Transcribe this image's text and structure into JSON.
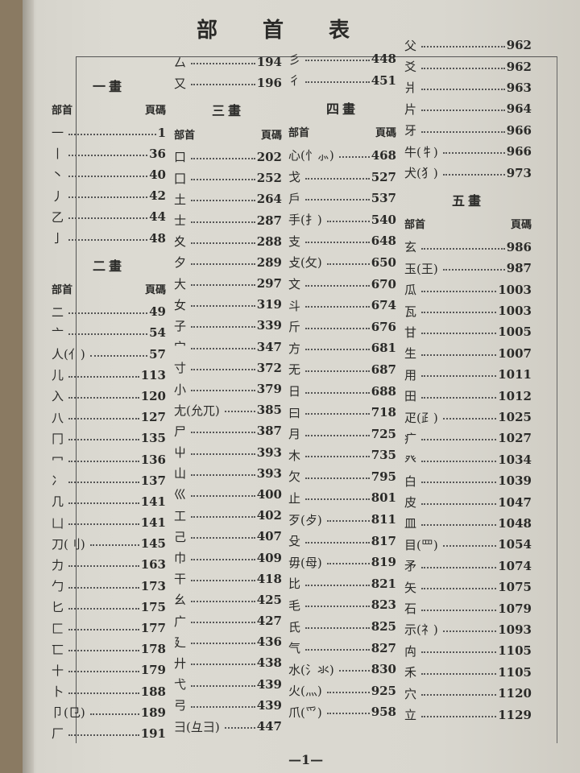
{
  "title": [
    "部",
    "首",
    "表"
  ],
  "header_labels": {
    "radical": "部首",
    "page": "頁碼"
  },
  "footer": "—1—",
  "columns": [
    {
      "items": [
        {
          "section": "一畫"
        },
        {
          "header": true
        },
        {
          "r": "一",
          "p": "1"
        },
        {
          "r": "丨",
          "p": "36"
        },
        {
          "r": "丶",
          "p": "40"
        },
        {
          "r": "丿",
          "p": "42"
        },
        {
          "r": "乙",
          "p": "44"
        },
        {
          "r": "亅",
          "p": "48"
        },
        {
          "section": "二畫"
        },
        {
          "header": true
        },
        {
          "r": "二",
          "p": "49"
        },
        {
          "r": "亠",
          "p": "54"
        },
        {
          "r": "人(亻)",
          "p": "57"
        },
        {
          "r": "儿",
          "p": "113"
        },
        {
          "r": "入",
          "p": "120"
        },
        {
          "r": "八",
          "p": "127"
        },
        {
          "r": "冂",
          "p": "135"
        },
        {
          "r": "冖",
          "p": "136"
        },
        {
          "r": "冫",
          "p": "137"
        },
        {
          "r": "几",
          "p": "141"
        },
        {
          "r": "凵",
          "p": "141"
        },
        {
          "r": "刀(刂)",
          "p": "145"
        },
        {
          "r": "力",
          "p": "163"
        },
        {
          "r": "勹",
          "p": "173"
        },
        {
          "r": "匕",
          "p": "175"
        },
        {
          "r": "匚",
          "p": "177"
        },
        {
          "r": "匸",
          "p": "178"
        },
        {
          "r": "十",
          "p": "179"
        },
        {
          "r": "卜",
          "p": "188"
        },
        {
          "r": "卩(㔾)",
          "p": "189"
        },
        {
          "r": "厂",
          "p": "191"
        }
      ]
    },
    {
      "items": [
        {
          "r": "厶",
          "p": "194"
        },
        {
          "r": "又",
          "p": "196"
        },
        {
          "section": "三畫"
        },
        {
          "header": true
        },
        {
          "r": "口",
          "p": "202"
        },
        {
          "r": "囗",
          "p": "252"
        },
        {
          "r": "土",
          "p": "264"
        },
        {
          "r": "士",
          "p": "287"
        },
        {
          "r": "夊",
          "p": "288"
        },
        {
          "r": "夕",
          "p": "289"
        },
        {
          "r": "大",
          "p": "297"
        },
        {
          "r": "女",
          "p": "319"
        },
        {
          "r": "子",
          "p": "339"
        },
        {
          "r": "宀",
          "p": "347"
        },
        {
          "r": "寸",
          "p": "372"
        },
        {
          "r": "小",
          "p": "379"
        },
        {
          "r": "尢(允兀)",
          "p": "385"
        },
        {
          "r": "尸",
          "p": "387"
        },
        {
          "r": "屮",
          "p": "393"
        },
        {
          "r": "山",
          "p": "393"
        },
        {
          "r": "巛",
          "p": "400"
        },
        {
          "r": "工",
          "p": "402"
        },
        {
          "r": "己",
          "p": "407"
        },
        {
          "r": "巾",
          "p": "409"
        },
        {
          "r": "干",
          "p": "418"
        },
        {
          "r": "幺",
          "p": "425"
        },
        {
          "r": "广",
          "p": "427"
        },
        {
          "r": "廴",
          "p": "436"
        },
        {
          "r": "廾",
          "p": "438"
        },
        {
          "r": "弋",
          "p": "439"
        },
        {
          "r": "弓",
          "p": "439"
        },
        {
          "r": "彐(彑⺕)",
          "p": "447"
        }
      ]
    },
    {
      "items": [
        {
          "r": "彡",
          "p": "448"
        },
        {
          "r": "彳",
          "p": "451"
        },
        {
          "section": "四畫"
        },
        {
          "header": true
        },
        {
          "r": "心(忄⺗)",
          "p": "468"
        },
        {
          "r": "戈",
          "p": "527"
        },
        {
          "r": "戶",
          "p": "537"
        },
        {
          "r": "手(扌)",
          "p": "540"
        },
        {
          "r": "支",
          "p": "648"
        },
        {
          "r": "攴(攵)",
          "p": "650"
        },
        {
          "r": "文",
          "p": "670"
        },
        {
          "r": "斗",
          "p": "674"
        },
        {
          "r": "斤",
          "p": "676"
        },
        {
          "r": "方",
          "p": "681"
        },
        {
          "r": "无",
          "p": "687"
        },
        {
          "r": "日",
          "p": "688"
        },
        {
          "r": "曰",
          "p": "718"
        },
        {
          "r": "月",
          "p": "725"
        },
        {
          "r": "木",
          "p": "735"
        },
        {
          "r": "欠",
          "p": "795"
        },
        {
          "r": "止",
          "p": "801"
        },
        {
          "r": "歹(歺)",
          "p": "811"
        },
        {
          "r": "殳",
          "p": "817"
        },
        {
          "r": "毋(母)",
          "p": "819"
        },
        {
          "r": "比",
          "p": "821"
        },
        {
          "r": "毛",
          "p": "823"
        },
        {
          "r": "氏",
          "p": "825"
        },
        {
          "r": "气",
          "p": "827"
        },
        {
          "r": "水(氵氺)",
          "p": "830"
        },
        {
          "r": "火(灬)",
          "p": "925"
        },
        {
          "r": "爪(爫)",
          "p": "958"
        }
      ]
    },
    {
      "items": [
        {
          "r": "父",
          "p": "962"
        },
        {
          "r": "爻",
          "p": "962"
        },
        {
          "r": "爿",
          "p": "963"
        },
        {
          "r": "片",
          "p": "964"
        },
        {
          "r": "牙",
          "p": "966"
        },
        {
          "r": "牛(牜)",
          "p": "966"
        },
        {
          "r": "犬(犭)",
          "p": "973"
        },
        {
          "section": "五畫"
        },
        {
          "header": true
        },
        {
          "r": "玄",
          "p": "986"
        },
        {
          "r": "玉(王)",
          "p": "987"
        },
        {
          "r": "瓜",
          "p": "1003"
        },
        {
          "r": "瓦",
          "p": "1003"
        },
        {
          "r": "甘",
          "p": "1005"
        },
        {
          "r": "生",
          "p": "1007"
        },
        {
          "r": "用",
          "p": "1011"
        },
        {
          "r": "田",
          "p": "1012"
        },
        {
          "r": "疋(⺪)",
          "p": "1025"
        },
        {
          "r": "疒",
          "p": "1027"
        },
        {
          "r": "癶",
          "p": "1034"
        },
        {
          "r": "白",
          "p": "1039"
        },
        {
          "r": "皮",
          "p": "1047"
        },
        {
          "r": "皿",
          "p": "1048"
        },
        {
          "r": "目(罒)",
          "p": "1054"
        },
        {
          "r": "矛",
          "p": "1074"
        },
        {
          "r": "矢",
          "p": "1075"
        },
        {
          "r": "石",
          "p": "1079"
        },
        {
          "r": "示(礻)",
          "p": "1093"
        },
        {
          "r": "禸",
          "p": "1105"
        },
        {
          "r": "禾",
          "p": "1105"
        },
        {
          "r": "穴",
          "p": "1120"
        },
        {
          "r": "立",
          "p": "1129"
        }
      ]
    }
  ]
}
